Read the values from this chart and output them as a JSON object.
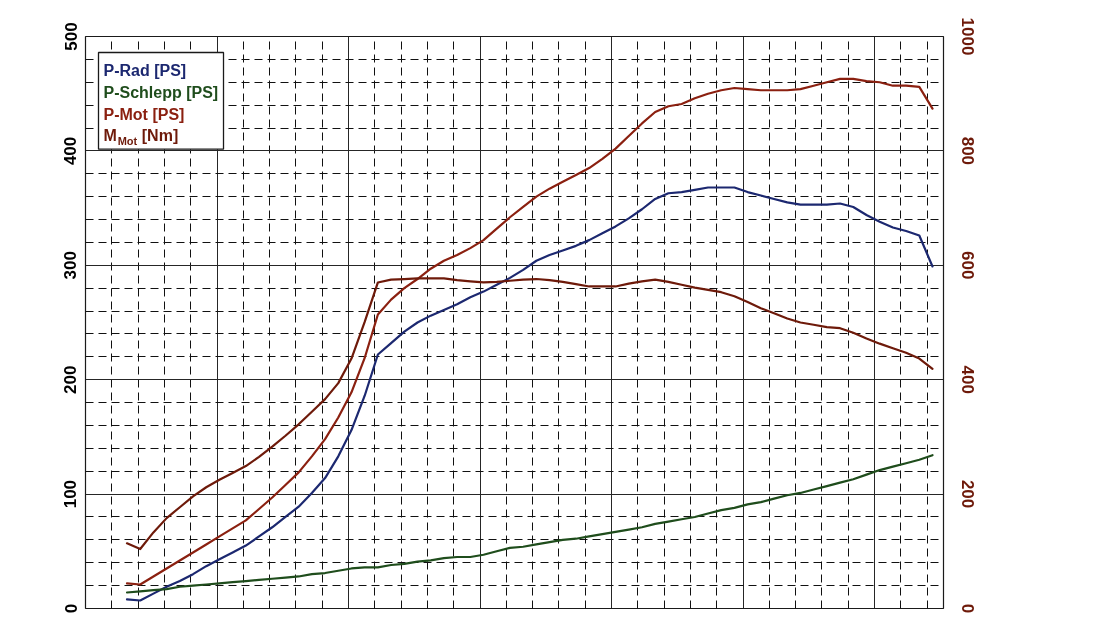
{
  "chart_data": {
    "type": "line",
    "categories": [
      null,
      null,
      null,
      null,
      null,
      null,
      null,
      null,
      null,
      null,
      null,
      null,
      null,
      null,
      null,
      null,
      null,
      null,
      null,
      null,
      null,
      null,
      null,
      null,
      null,
      null,
      null,
      null,
      null,
      null,
      null,
      null,
      null,
      null,
      null,
      null,
      null,
      null,
      null,
      null,
      null,
      null,
      null,
      null,
      null,
      null,
      null,
      null,
      null,
      null,
      null,
      null,
      null,
      null,
      null,
      null,
      null,
      null,
      null,
      null,
      null,
      null
    ],
    "series": [
      {
        "name": "P-Rad [PS]",
        "color": "#1c2870",
        "values": [
          8,
          7,
          13,
          19,
          24,
          30,
          37,
          43,
          49,
          55,
          63,
          71,
          80,
          89,
          101,
          114,
          133,
          156,
          186,
          222,
          232,
          242,
          250,
          256,
          261,
          266,
          272,
          277,
          283,
          289,
          296,
          304,
          309,
          313,
          317,
          322,
          328,
          334,
          341,
          349,
          358,
          363,
          364,
          366,
          368,
          368,
          368,
          364,
          361,
          358,
          355,
          353,
          353,
          353,
          354,
          351,
          344,
          338,
          333,
          330,
          326,
          299
        ]
      },
      {
        "name": "P-Schlepp [PS]",
        "color": "#1f4d1c",
        "values": [
          14,
          15,
          16,
          17,
          19,
          20,
          21,
          22,
          23,
          24,
          25,
          26,
          27,
          28,
          30,
          31,
          33,
          35,
          36,
          36,
          38,
          39,
          41,
          42,
          44,
          45,
          45,
          47,
          50,
          53,
          54,
          56,
          58,
          60,
          61,
          63,
          65,
          67,
          69,
          71,
          74,
          76,
          78,
          80,
          83,
          86,
          88,
          91,
          93,
          96,
          99,
          101,
          104,
          107,
          110,
          113,
          117,
          121,
          124,
          127,
          130,
          134
        ]
      },
      {
        "name": "P-Mot [PS]",
        "color": "#8b2010",
        "values": [
          22,
          21,
          28,
          35,
          42,
          49,
          56,
          63,
          70,
          77,
          87,
          97,
          108,
          119,
          133,
          148,
          167,
          189,
          219,
          257,
          270,
          280,
          288,
          297,
          304,
          309,
          315,
          322,
          332,
          342,
          351,
          360,
          367,
          373,
          379,
          385,
          393,
          402,
          413,
          424,
          434,
          439,
          441,
          446,
          450,
          453,
          455,
          454,
          453,
          453,
          453,
          454,
          457,
          460,
          463,
          463,
          461,
          460,
          457,
          457,
          456,
          437
        ]
      },
      {
        "name": "M$_{Mot}$ [Nm]",
        "color": "#6e1a0a",
        "axis": "y2",
        "values": [
          114,
          104,
          133,
          158,
          177,
          196,
          212,
          225,
          237,
          249,
          265,
          283,
          302,
          322,
          344,
          366,
          394,
          437,
          501,
          570,
          575,
          576,
          577,
          577,
          577,
          574,
          572,
          570,
          571,
          573,
          575,
          576,
          574,
          571,
          567,
          563,
          563,
          563,
          568,
          572,
          575,
          571,
          566,
          561,
          557,
          553,
          546,
          536,
          525,
          516,
          507,
          500,
          496,
          492,
          490,
          482,
          472,
          463,
          455,
          447,
          437,
          419
        ]
      }
    ],
    "ylim": [
      0,
      500
    ],
    "yticks": [
      0,
      100,
      200,
      300,
      400,
      500
    ],
    "y2lim": [
      0,
      1000
    ],
    "y2ticks": [
      0,
      200,
      400,
      600,
      800,
      1000
    ],
    "grid": true,
    "legend": "top left"
  }
}
